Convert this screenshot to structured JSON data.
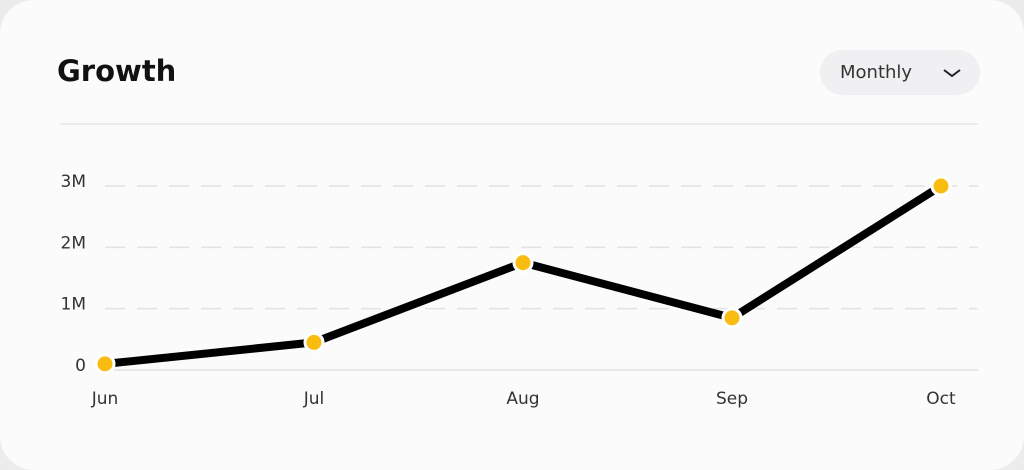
{
  "chart_data": {
    "type": "line",
    "title": "Growth",
    "categories": [
      "Jun",
      "Jul",
      "Aug",
      "Sep",
      "Oct"
    ],
    "values": [
      0.1,
      0.45,
      1.75,
      0.85,
      3
    ],
    "color": "#000000",
    "marker_color": "#f9bd12",
    "ylim": [
      0,
      3
    ],
    "yticks": [
      0,
      {
        "value": 1,
        "label": "1M"
      },
      {
        "value": 2,
        "label": "2M"
      },
      {
        "value": 3,
        "label": "3M"
      }
    ],
    "grid": true
  },
  "controls": {
    "period": "Monthly"
  }
}
